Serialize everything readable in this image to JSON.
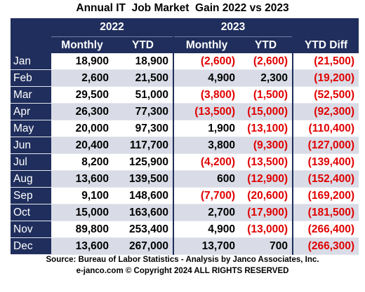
{
  "title": "Annual IT  Job Market  Gain 2022 vs 2023",
  "colors": {
    "header_bg": "#1f2e5c",
    "stripe": "#d9dce6",
    "negative": "#e00000"
  },
  "chart_data": {
    "type": "table",
    "year_headers": [
      "2022",
      "2023"
    ],
    "columns": [
      "Monthly",
      "YTD",
      "Monthly",
      "YTD",
      "YTD Diff"
    ],
    "rows": [
      {
        "month": "Jan",
        "cells": [
          "18,900",
          "18,900",
          "(2,600)",
          "(2,600)",
          "(21,500)"
        ]
      },
      {
        "month": "Feb",
        "cells": [
          "2,600",
          "21,500",
          "4,900",
          "2,300",
          "(19,200)"
        ]
      },
      {
        "month": "Mar",
        "cells": [
          "29,500",
          "51,000",
          "(3,800)",
          "(1,500)",
          "(52,500)"
        ]
      },
      {
        "month": "Apr",
        "cells": [
          "26,300",
          "77,300",
          "(13,500)",
          "(15,000)",
          "(92,300)"
        ]
      },
      {
        "month": "May",
        "cells": [
          "20,000",
          "97,300",
          "1,900",
          "(13,100)",
          "(110,400)"
        ]
      },
      {
        "month": "Jun",
        "cells": [
          "20,400",
          "117,700",
          "3,800",
          "(9,300)",
          "(127,000)"
        ]
      },
      {
        "month": "Jul",
        "cells": [
          "8,200",
          "125,900",
          "(4,200)",
          "(13,500)",
          "(139,400)"
        ]
      },
      {
        "month": "Aug",
        "cells": [
          "13,600",
          "139,500",
          "600",
          "(12,900)",
          "(152,400)"
        ]
      },
      {
        "month": "Sep",
        "cells": [
          "9,100",
          "148,600",
          "(7,700)",
          "(20,600)",
          "(169,200)"
        ]
      },
      {
        "month": "Oct",
        "cells": [
          "15,000",
          "163,600",
          "2,700",
          "(17,900)",
          "(181,500)"
        ]
      },
      {
        "month": "Nov",
        "cells": [
          "89,800",
          "253,400",
          "4,900",
          "(13,000)",
          "(266,400)"
        ]
      },
      {
        "month": "Dec",
        "cells": [
          "13,600",
          "267,000",
          "13,700",
          "700",
          "(266,300)"
        ]
      }
    ]
  },
  "footer": {
    "source": "Source: Bureau of Labor Statistics - Analysis by Janco Associates, Inc.",
    "copyright": "e-janco.com © Copyright 2024 ALL RIGHTS RESERVED"
  }
}
